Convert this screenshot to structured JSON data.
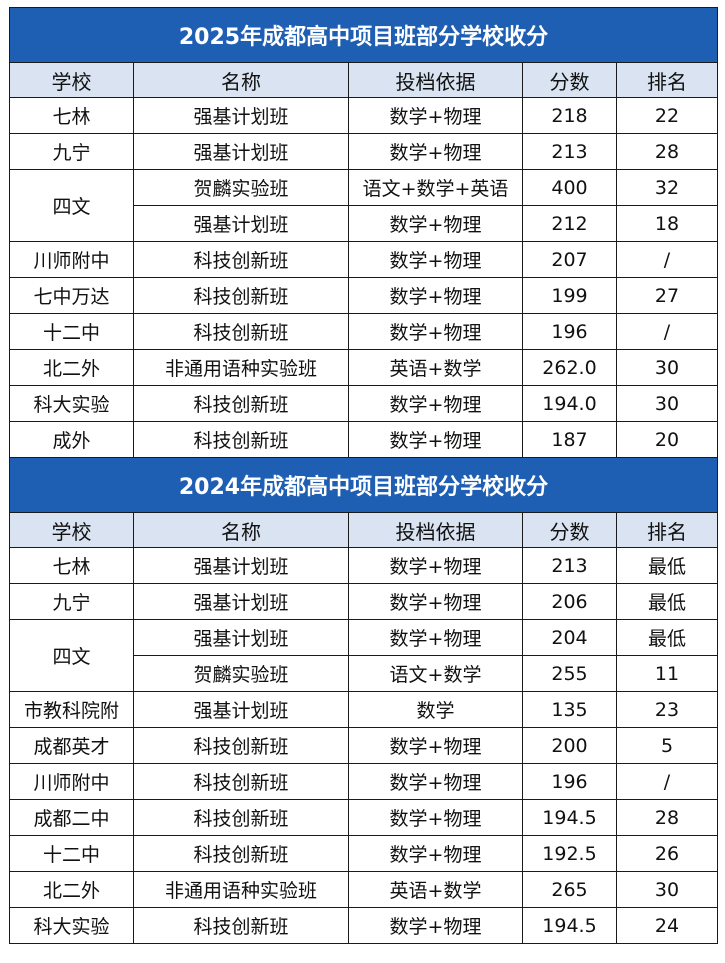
{
  "tables": [
    {
      "title": "2025年成都高中项目班部分学校收分",
      "headers": [
        "学校",
        "名称",
        "投档依据",
        "分数",
        "排名"
      ],
      "rows": [
        {
          "school": "七林",
          "name": "强基计划班",
          "basis": "数学+物理",
          "score": "218",
          "rank": "22"
        },
        {
          "school": "九宁",
          "name": "强基计划班",
          "basis": "数学+物理",
          "score": "213",
          "rank": "28"
        },
        {
          "school": "四文",
          "name": "贺麟实验班",
          "basis": "语文+数学+英语",
          "score": "400",
          "rank": "32"
        },
        {
          "school": "",
          "name": "强基计划班",
          "basis": "数学+物理",
          "score": "212",
          "rank": "18"
        },
        {
          "school": "川师附中",
          "name": "科技创新班",
          "basis": "数学+物理",
          "score": "207",
          "rank": "/"
        },
        {
          "school": "七中万达",
          "name": "科技创新班",
          "basis": "数学+物理",
          "score": "199",
          "rank": "27"
        },
        {
          "school": "十二中",
          "name": "科技创新班",
          "basis": "数学+物理",
          "score": "196",
          "rank": "/"
        },
        {
          "school": "北二外",
          "name": "非通用语种实验班",
          "basis": "英语+数学",
          "score": "262.0",
          "rank": "30"
        },
        {
          "school": "科大实验",
          "name": "科技创新班",
          "basis": "数学+物理",
          "score": "194.0",
          "rank": "30"
        },
        {
          "school": "成外",
          "name": "科技创新班",
          "basis": "数学+物理",
          "score": "187",
          "rank": "20"
        }
      ]
    },
    {
      "title": "2024年成都高中项目班部分学校收分",
      "headers": [
        "学校",
        "名称",
        "投档依据",
        "分数",
        "排名"
      ],
      "rows": [
        {
          "school": "七林",
          "name": "强基计划班",
          "basis": "数学+物理",
          "score": "213",
          "rank": "最低"
        },
        {
          "school": "九宁",
          "name": "强基计划班",
          "basis": "数学+物理",
          "score": "206",
          "rank": "最低"
        },
        {
          "school": "四文",
          "name": "强基计划班",
          "basis": "数学+物理",
          "score": "204",
          "rank": "最低"
        },
        {
          "school": "",
          "name": "贺麟实验班",
          "basis": "语文+数学",
          "score": "255",
          "rank": "11"
        },
        {
          "school": "市教科院附",
          "name": "强基计划班",
          "basis": "数学",
          "score": "135",
          "rank": "23"
        },
        {
          "school": "成都英才",
          "name": "科技创新班",
          "basis": "数学+物理",
          "score": "200",
          "rank": "5"
        },
        {
          "school": "川师附中",
          "name": "科技创新班",
          "basis": "数学+物理",
          "score": "196",
          "rank": "/"
        },
        {
          "school": "成都二中",
          "name": "科技创新班",
          "basis": "数学+物理",
          "score": "194.5",
          "rank": "28"
        },
        {
          "school": "十二中",
          "name": "科技创新班",
          "basis": "数学+物理",
          "score": "192.5",
          "rank": "26"
        },
        {
          "school": "北二外",
          "name": "非通用语种实验班",
          "basis": "英语+数学",
          "score": "265",
          "rank": "30"
        },
        {
          "school": "科大实验",
          "name": "科技创新班",
          "basis": "数学+物理",
          "score": "194.5",
          "rank": "24"
        }
      ]
    }
  ]
}
